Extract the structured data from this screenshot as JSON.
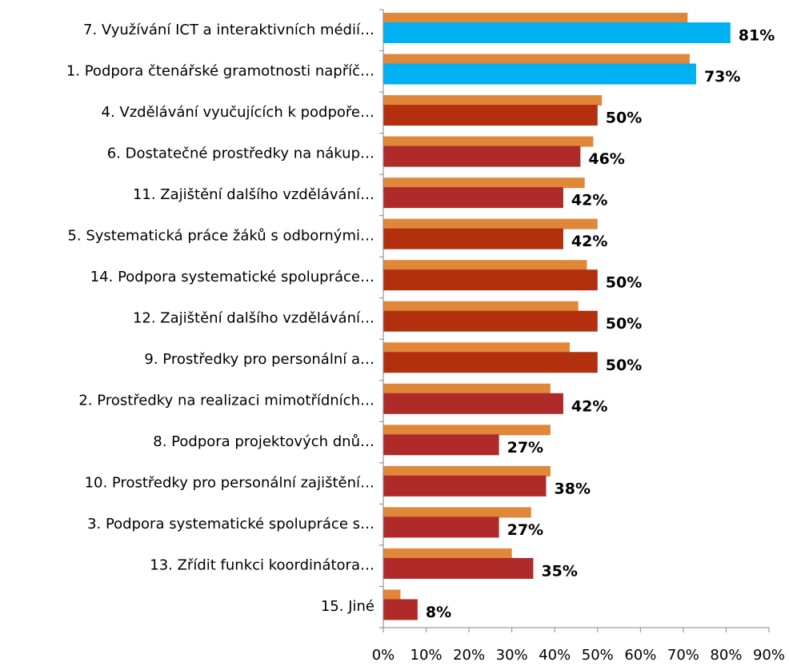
{
  "chart_data": {
    "type": "barh",
    "categories": [
      "7. Využívání ICT a interaktivních médií…",
      "1. Podpora čtenářské gramotnosti napříč…",
      "4. Vzdělávání vyučujících k podpoře…",
      "6. Dostatečné prostředky na nákup…",
      "11. Zajištění dalšího vzdělávání…",
      "5. Systematická práce žáků s odbornými…",
      "14. Podpora systematické spolupráce…",
      "12. Zajištění dalšího vzdělávání…",
      "9. Prostředky pro personální a…",
      "2. Prostředky na realizaci mimotřídních…",
      "8. Podpora projektových dnů…",
      "10. Prostředky pro personální zajištění…",
      "3. Podpora systematické spolupráce s…",
      "13. Zřídit funkci koordinátora…",
      "15. Jiné"
    ],
    "series": [
      {
        "color": "#e0873a",
        "values": [
          71,
          71.5,
          51,
          49,
          47,
          50,
          47.5,
          45.5,
          43.5,
          39,
          39,
          39,
          34.5,
          30,
          4
        ]
      },
      {
        "colors": [
          "#00b0f0",
          "#00b0f0",
          "#b3300f",
          "#b12a2a",
          "#b12a2a",
          "#b3300f",
          "#b3300f",
          "#b3300f",
          "#b3300f",
          "#b12a2a",
          "#b12a2a",
          "#b12a2a",
          "#b12a2a",
          "#b12a2a",
          "#b12a2a"
        ],
        "values": [
          81,
          73,
          50,
          46,
          42,
          42,
          50,
          50,
          50,
          42,
          27,
          38,
          27,
          35,
          8
        ],
        "value_labels": [
          "81%",
          "73%",
          "50%",
          "46%",
          "42%",
          "42%",
          "50%",
          "50%",
          "50%",
          "42%",
          "27%",
          "38%",
          "27%",
          "35%",
          "8%"
        ]
      }
    ],
    "xlim": [
      0,
      90
    ],
    "xticks": [
      {
        "value": 0,
        "label": "0%"
      },
      {
        "value": 10,
        "label": "10%"
      },
      {
        "value": 20,
        "label": "20%"
      },
      {
        "value": 30,
        "label": "30%"
      },
      {
        "value": 40,
        "label": "40%"
      },
      {
        "value": 50,
        "label": "50%"
      },
      {
        "value": 60,
        "label": "60%"
      },
      {
        "value": 70,
        "label": "70%"
      },
      {
        "value": 80,
        "label": "80%"
      },
      {
        "value": 90,
        "label": "90%"
      }
    ]
  }
}
